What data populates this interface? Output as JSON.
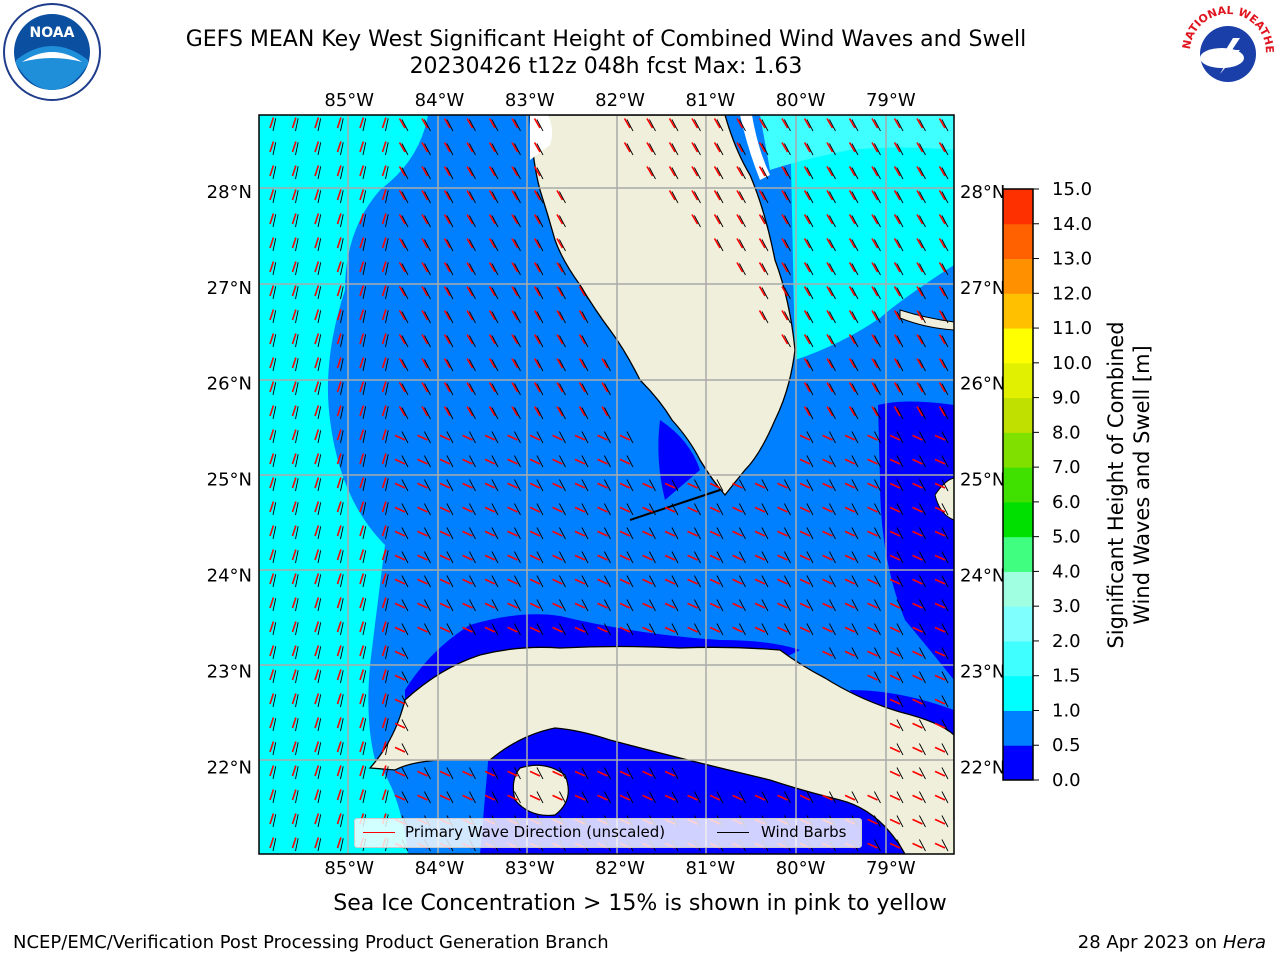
{
  "title": {
    "line1": "GEFS MEAN Key West Significant Height of Combined Wind Waves and Swell",
    "line2": "20230426 t12z 048h fcst   Max: 1.63"
  },
  "logos": {
    "noaa_text": "NOAA",
    "nws_text": "NATIONAL WEATHER SERVICE"
  },
  "map": {
    "lon_ticks": [
      "85°W",
      "84°W",
      "83°W",
      "82°W",
      "81°W",
      "80°W",
      "79°W"
    ],
    "lon_values": [
      -85,
      -84,
      -83,
      -82,
      -81,
      -80,
      -79
    ],
    "lat_ticks": [
      "28°N",
      "27°N",
      "26°N",
      "25°N",
      "24°N",
      "23°N",
      "22°N"
    ],
    "lat_values": [
      28,
      27,
      26,
      25,
      24,
      23,
      22
    ],
    "lon_range": [
      -86.0,
      -78.3
    ],
    "lat_range": [
      21.1,
      28.8
    ],
    "colors": {
      "land": "#efefdb",
      "deep": "#0000ff",
      "mid": "#0080ff",
      "shallow": "#00ffff",
      "wave": "#ff0000",
      "barb": "#000000"
    }
  },
  "legend": {
    "wave": "Primary Wave Direction (unscaled)",
    "barb": "Wind Barbs"
  },
  "colorbar": {
    "label_line1": "Significant Height of Combined",
    "label_line2": "Wind Waves and Swell [m]",
    "ticks": [
      "0.0",
      "0.5",
      "1.0",
      "1.5",
      "2.0",
      "3.0",
      "4.0",
      "5.0",
      "6.0",
      "7.0",
      "8.0",
      "9.0",
      "10.0",
      "11.0",
      "12.0",
      "13.0",
      "14.0",
      "15.0"
    ],
    "colors": [
      "#0000ff",
      "#0080ff",
      "#00ffff",
      "#40ffff",
      "#80ffff",
      "#a0ffe0",
      "#40ff80",
      "#00e000",
      "#40e000",
      "#80e000",
      "#c0e000",
      "#e0f000",
      "#ffff00",
      "#ffc000",
      "#ff9000",
      "#ff6000",
      "#ff3000",
      "#ff0000"
    ]
  },
  "footer": {
    "ice_note": "Sea Ice Concentration > 15% is shown in pink to yellow",
    "left": "NCEP/EMC/Verification Post Processing Product Generation Branch",
    "date": "28 Apr 2023 on ",
    "host": "Hera"
  }
}
